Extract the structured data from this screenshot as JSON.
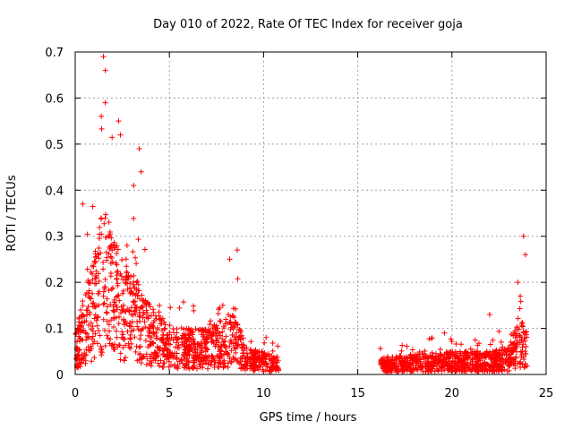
{
  "chart_data": {
    "type": "scatter",
    "title": "Day 010 of 2022, Rate Of TEC Index for receiver goja",
    "xlabel": "GPS time / hours",
    "ylabel": "ROTI / TECUs",
    "xlim": [
      0,
      25
    ],
    "ylim": [
      0,
      0.7
    ],
    "grid": true,
    "marker": "+",
    "color": "#ff0000",
    "x_ticks": [
      "0",
      "5",
      "10",
      "15",
      "20",
      "25"
    ],
    "y_ticks": [
      "0",
      "0.1",
      "0.2",
      "0.3",
      "0.4",
      "0.5",
      "0.6",
      "0.7"
    ],
    "data_gap_hours": [
      10.8,
      16.2
    ],
    "notable_points": [
      {
        "x": 0.4,
        "y": 0.37
      },
      {
        "x": 1.5,
        "y": 0.69
      },
      {
        "x": 1.6,
        "y": 0.66
      },
      {
        "x": 1.6,
        "y": 0.59
      },
      {
        "x": 2.3,
        "y": 0.55
      },
      {
        "x": 2.4,
        "y": 0.52
      },
      {
        "x": 3.4,
        "y": 0.49
      },
      {
        "x": 3.5,
        "y": 0.44
      },
      {
        "x": 3.1,
        "y": 0.41
      },
      {
        "x": 8.6,
        "y": 0.27
      },
      {
        "x": 8.2,
        "y": 0.25
      },
      {
        "x": 19.6,
        "y": 0.09
      },
      {
        "x": 22.0,
        "y": 0.13
      },
      {
        "x": 23.5,
        "y": 0.2
      },
      {
        "x": 23.8,
        "y": 0.3
      },
      {
        "x": 23.9,
        "y": 0.26
      }
    ],
    "envelope": [
      {
        "x": 0.0,
        "y": 0.07
      },
      {
        "x": 0.5,
        "y": 0.15
      },
      {
        "x": 1.0,
        "y": 0.2
      },
      {
        "x": 1.5,
        "y": 0.3
      },
      {
        "x": 2.0,
        "y": 0.25
      },
      {
        "x": 2.5,
        "y": 0.2
      },
      {
        "x": 3.0,
        "y": 0.18
      },
      {
        "x": 3.5,
        "y": 0.15
      },
      {
        "x": 4.0,
        "y": 0.12
      },
      {
        "x": 4.5,
        "y": 0.1
      },
      {
        "x": 5.0,
        "y": 0.09
      },
      {
        "x": 6.0,
        "y": 0.08
      },
      {
        "x": 7.0,
        "y": 0.08
      },
      {
        "x": 8.0,
        "y": 0.1
      },
      {
        "x": 8.5,
        "y": 0.12
      },
      {
        "x": 9.0,
        "y": 0.05
      },
      {
        "x": 10.0,
        "y": 0.04
      },
      {
        "x": 10.8,
        "y": 0.03
      },
      {
        "x": 16.2,
        "y": 0.03
      },
      {
        "x": 18.0,
        "y": 0.035
      },
      {
        "x": 20.0,
        "y": 0.04
      },
      {
        "x": 22.0,
        "y": 0.04
      },
      {
        "x": 23.0,
        "y": 0.05
      },
      {
        "x": 23.6,
        "y": 0.1
      },
      {
        "x": 24.0,
        "y": 0.08
      }
    ]
  }
}
